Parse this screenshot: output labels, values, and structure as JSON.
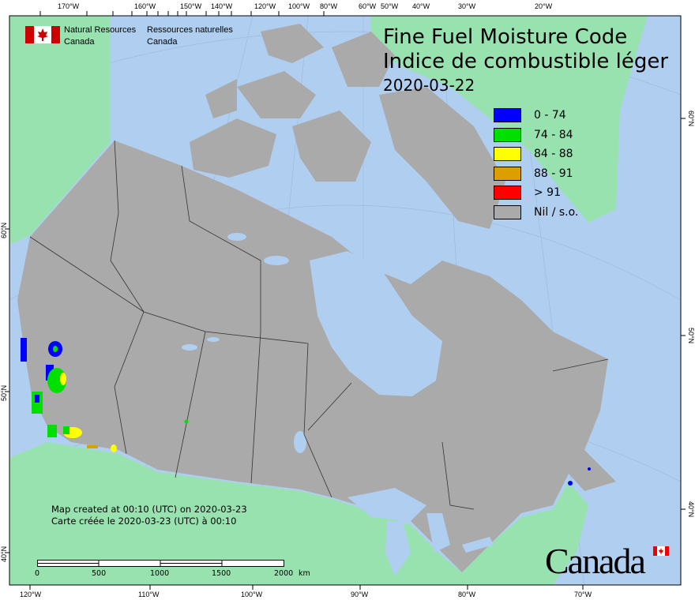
{
  "header": {
    "agency_en": [
      "Natural Resources",
      "Canada"
    ],
    "agency_fr": [
      "Ressources naturelles",
      "Canada"
    ]
  },
  "title": {
    "line_en": "Fine Fuel Moisture Code",
    "line_fr": "Indice de combustible léger",
    "date": "2020-03-22"
  },
  "legend": [
    {
      "label": "0 - 74",
      "color": "#0000ff"
    },
    {
      "label": "74 - 84",
      "color": "#00e000"
    },
    {
      "label": "84 - 88",
      "color": "#ffff00"
    },
    {
      "label": "88 - 91",
      "color": "#dd9f00"
    },
    {
      "label": "> 91",
      "color": "#ff0000"
    },
    {
      "label": "Nil / s.o.",
      "color": "#aaaaaa"
    }
  ],
  "credit": {
    "en": "Map created at 00:10 (UTC) on 2020-03-23",
    "fr": "Carte créée le 2020-03-23 (UTC) à 00:10"
  },
  "scale_bar": {
    "labels": [
      "0",
      "500",
      "1000",
      "1500",
      "2000"
    ],
    "unit": "km"
  },
  "axes": {
    "top": [
      "170°W",
      "160°W",
      "150°W",
      "140°W",
      "120°W",
      "100°W",
      "80°W",
      "60°W",
      "50°W",
      "40°W",
      "30°W",
      "20°W"
    ],
    "bottom": [
      "120°W",
      "110°W",
      "100°W",
      "90°W",
      "80°W",
      "70°W"
    ],
    "left": [
      "60°N",
      "50°N",
      "40°N"
    ],
    "right": [
      "60°N",
      "50°N",
      "40°N"
    ]
  },
  "wordmark": "Canada",
  "colors": {
    "water": "#b0cff0",
    "foreign_land": "#98e2b0",
    "canada_land": "#aaaaaa"
  }
}
